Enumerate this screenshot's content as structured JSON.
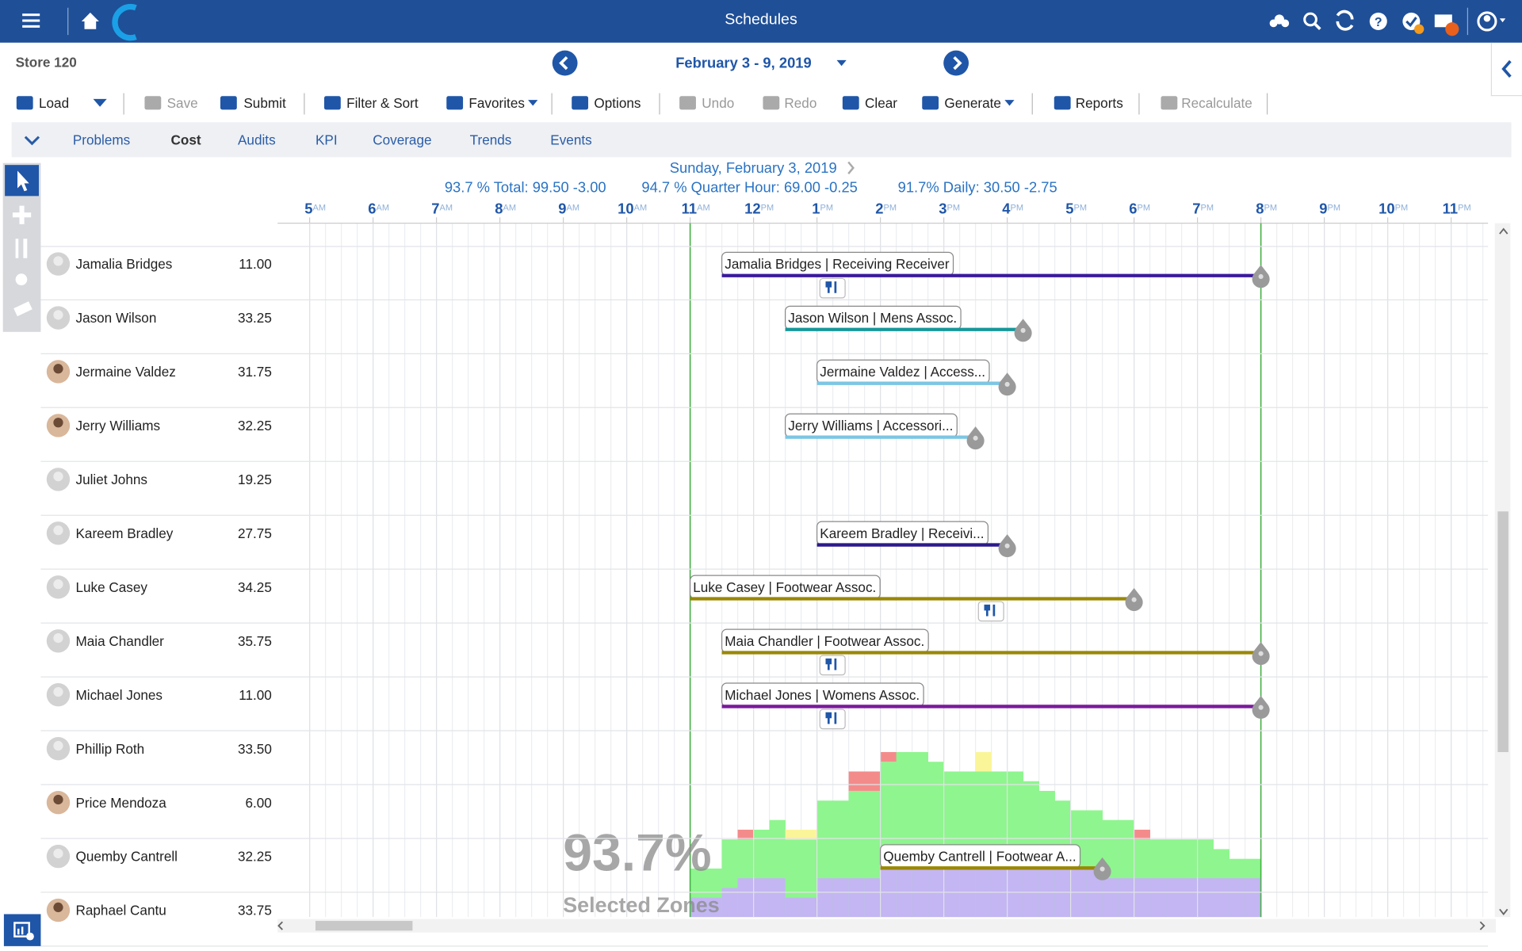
{
  "app": {
    "title": "Schedules"
  },
  "store": "Store 120",
  "week": "February 3 - 9, 2019",
  "toolbar": [
    {
      "label": "Load",
      "disabled": false
    },
    {
      "label": "Save",
      "disabled": true
    },
    {
      "label": "Submit",
      "disabled": false
    },
    {
      "label": "Filter & Sort",
      "disabled": false
    },
    {
      "label": "Favorites",
      "disabled": false
    },
    {
      "label": "Options",
      "disabled": false
    },
    {
      "label": "Undo",
      "disabled": true
    },
    {
      "label": "Redo",
      "disabled": true
    },
    {
      "label": "Clear",
      "disabled": false
    },
    {
      "label": "Generate",
      "disabled": false
    },
    {
      "label": "Reports",
      "disabled": false
    },
    {
      "label": "Recalculate",
      "disabled": true
    }
  ],
  "tabs": [
    "Problems",
    "Cost",
    "Audits",
    "KPI",
    "Coverage",
    "Trends",
    "Events"
  ],
  "active_tab": 1,
  "day": "Sunday, February 3, 2019",
  "stats": [
    "93.7 % Total: 99.50 -3.00",
    "94.7 % Quarter Hour: 69.00 -0.25",
    "91.7% Daily: 30.50 -2.75"
  ],
  "timeline": {
    "ticks": [
      {
        "value": 5,
        "label": "5",
        "suffix": "AM"
      },
      {
        "value": 6,
        "label": "6",
        "suffix": "AM"
      },
      {
        "value": 7,
        "label": "7",
        "suffix": "AM"
      },
      {
        "value": 8,
        "label": "8",
        "suffix": "AM"
      },
      {
        "value": 9,
        "label": "9",
        "suffix": "AM"
      },
      {
        "value": 10,
        "label": "10",
        "suffix": "AM"
      },
      {
        "value": 11,
        "label": "11",
        "suffix": "AM"
      },
      {
        "value": 12,
        "label": "12",
        "suffix": "PM"
      },
      {
        "value": 13,
        "label": "1",
        "suffix": "PM"
      },
      {
        "value": 14,
        "label": "2",
        "suffix": "PM"
      },
      {
        "value": 15,
        "label": "3",
        "suffix": "PM"
      },
      {
        "value": 16,
        "label": "4",
        "suffix": "PM"
      },
      {
        "value": 17,
        "label": "5",
        "suffix": "PM"
      },
      {
        "value": 18,
        "label": "6",
        "suffix": "PM"
      },
      {
        "value": 19,
        "label": "7",
        "suffix": "PM"
      },
      {
        "value": 20,
        "label": "8",
        "suffix": "PM"
      },
      {
        "value": 21,
        "label": "9",
        "suffix": "PM"
      },
      {
        "value": 22,
        "label": "10",
        "suffix": "PM"
      },
      {
        "value": 23,
        "label": "11",
        "suffix": "PM"
      }
    ],
    "open": [
      11,
      20
    ]
  },
  "employees": [
    {
      "name": "Jamalia Bridges",
      "hours": "11.00",
      "photo": false
    },
    {
      "name": "Jason Wilson",
      "hours": "33.25",
      "photo": false
    },
    {
      "name": "Jermaine Valdez",
      "hours": "31.75",
      "photo": true
    },
    {
      "name": "Jerry Williams",
      "hours": "32.25",
      "photo": true
    },
    {
      "name": "Juliet Johns",
      "hours": "19.25",
      "photo": false
    },
    {
      "name": "Kareem Bradley",
      "hours": "27.75",
      "photo": false
    },
    {
      "name": "Luke Casey",
      "hours": "34.25",
      "photo": false
    },
    {
      "name": "Maia Chandler",
      "hours": "35.75",
      "photo": false
    },
    {
      "name": "Michael Jones",
      "hours": "11.00",
      "photo": false
    },
    {
      "name": "Phillip Roth",
      "hours": "33.50",
      "photo": false
    },
    {
      "name": "Price Mendoza",
      "hours": "6.00",
      "photo": true
    },
    {
      "name": "Quemby Cantrell",
      "hours": "32.25",
      "photo": false
    },
    {
      "name": "Raphael Cantu",
      "hours": "33.75",
      "photo": true
    }
  ],
  "shifts": [
    {
      "row": 0,
      "label": "Jamalia Bridges | Receiving Receiver",
      "start": 11.5,
      "end": 20,
      "color": "#3b1a9c",
      "break": 13
    },
    {
      "row": 1,
      "label": "Jason Wilson | Mens Assoc.",
      "start": 12.5,
      "end": 16.25,
      "color": "#17979a",
      "break": null
    },
    {
      "row": 2,
      "label": "Jermaine Valdez | Access...",
      "start": 13,
      "end": 16,
      "color": "#7cc6e4",
      "break": null
    },
    {
      "row": 3,
      "label": "Jerry Williams | Accessori...",
      "start": 12.5,
      "end": 15.5,
      "color": "#7cc6e4",
      "break": null
    },
    {
      "row": 5,
      "label": "Kareem Bradley | Receivi...",
      "start": 13,
      "end": 16,
      "color": "#2d1a8c",
      "break": null
    },
    {
      "row": 6,
      "label": "Luke Casey | Footwear Assoc.",
      "start": 11,
      "end": 18,
      "color": "#9a8700",
      "break": 15.5
    },
    {
      "row": 7,
      "label": "Maia Chandler | Footwear Assoc.",
      "start": 11.5,
      "end": 20,
      "color": "#9a8700",
      "break": 13
    },
    {
      "row": 8,
      "label": "Michael Jones | Womens Assoc.",
      "start": 11.5,
      "end": 20,
      "color": "#7a1a9c",
      "break": 13
    },
    {
      "row": 11,
      "label": "Quemby Cantrell | Footwear A...",
      "start": 14,
      "end": 17.5,
      "color": "#9a8700",
      "break": null
    }
  ],
  "coverage": {
    "percent": "93.7%",
    "caption": "Selected Zones",
    "x": [
      11,
      11.25,
      11.5,
      11.75,
      12,
      12.25,
      12.5,
      12.75,
      13,
      13.25,
      13.5,
      13.75,
      14,
      14.25,
      14.5,
      14.75,
      15,
      15.25,
      15.5,
      15.75,
      16,
      16.25,
      16.5,
      16.75,
      17,
      17.25,
      17.5,
      17.75,
      18,
      18.25,
      18.5,
      18.75,
      19,
      19.25,
      19.5,
      19.75
    ],
    "scheduled": [
      5,
      5,
      8,
      8,
      9,
      10,
      8,
      8,
      12,
      12,
      13,
      13,
      16,
      17,
      17,
      16,
      15,
      15,
      15,
      15,
      15,
      14,
      13,
      12,
      11,
      11,
      10,
      10,
      8,
      8,
      8,
      8,
      8,
      7,
      6,
      6
    ],
    "over": [
      0,
      0,
      0,
      1,
      0,
      0,
      0,
      0,
      0,
      0,
      2,
      2,
      1,
      0,
      0,
      0,
      0,
      0,
      0,
      0,
      0,
      0,
      0,
      0,
      0,
      0,
      0,
      0,
      1,
      0,
      0,
      0,
      0,
      0,
      0,
      0
    ],
    "under": [
      0,
      0,
      0,
      0,
      0,
      0,
      1,
      1,
      0,
      0,
      0,
      0,
      0,
      0,
      0,
      0,
      0,
      0,
      2,
      0,
      0,
      0,
      0,
      0,
      0,
      0,
      0,
      0,
      0,
      0,
      0,
      0,
      0,
      0,
      0,
      0
    ],
    "base": [
      2,
      2,
      3,
      4,
      4,
      4,
      2,
      2,
      4,
      4,
      4,
      4,
      5,
      5,
      5,
      5,
      5,
      5,
      5,
      5,
      5,
      5,
      5,
      5,
      5,
      5,
      4,
      4,
      4,
      4,
      4,
      4,
      4,
      4,
      4,
      4
    ],
    "colors": {
      "scheduled": "#8ff58f",
      "over": "#f48b8b",
      "under": "#fbf59a",
      "base": "#c3b6f2"
    }
  }
}
